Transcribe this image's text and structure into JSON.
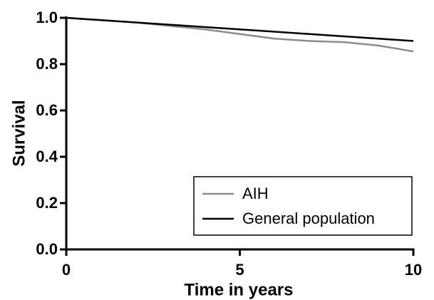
{
  "chart_data": {
    "type": "line",
    "x_label": "Time in years",
    "y_label": "Survival",
    "x": [
      0,
      1,
      2,
      3,
      4,
      5,
      6,
      7,
      8,
      9,
      10
    ],
    "series": [
      {
        "name": "AIH",
        "color": "#8c8c8c",
        "values": [
          1.0,
          0.99,
          0.98,
          0.965,
          0.95,
          0.93,
          0.91,
          0.9,
          0.895,
          0.88,
          0.855
        ]
      },
      {
        "name": "General population",
        "color": "#000000",
        "values": [
          1.0,
          0.99,
          0.98,
          0.97,
          0.96,
          0.95,
          0.94,
          0.93,
          0.92,
          0.91,
          0.9
        ]
      }
    ],
    "xlim": [
      0,
      10
    ],
    "xticks": [
      0,
      5,
      10
    ],
    "ylim": [
      0,
      1
    ],
    "yticks": [
      {
        "value": 0,
        "label": "0.0"
      },
      0.2,
      0.4,
      0.6,
      0.8,
      {
        "value": 1,
        "label": "1.0"
      }
    ],
    "legend": "lower right"
  }
}
